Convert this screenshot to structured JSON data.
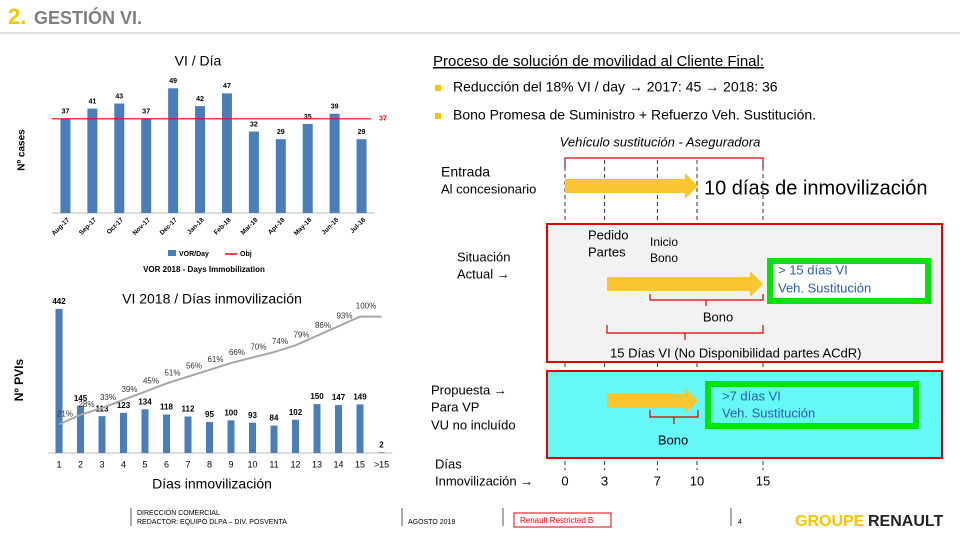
{
  "header": {
    "number": "2.",
    "title": "GESTIÓN VI."
  },
  "chart_data": [
    {
      "type": "bar",
      "title": "VI / Día",
      "y_label": "Nº cases",
      "categories": [
        "Aug-17",
        "Sep-17",
        "Oct-17",
        "Nov-17",
        "Dec-17",
        "Jan-18",
        "Feb-18",
        "Mar-18",
        "Apr-18",
        "May-18",
        "Jun-18",
        "Jul-18"
      ],
      "series": [
        {
          "name": "VOR/Day",
          "color": "#4a7ebb",
          "values": [
            37,
            41,
            43,
            37,
            49,
            42,
            47,
            32,
            29,
            35,
            39,
            29
          ]
        }
      ],
      "objective": {
        "name": "Obj",
        "value": 37,
        "color": "#ff0000"
      },
      "ylim": [
        0,
        55
      ],
      "caption": "VOR 2018 - Days Immobilization"
    },
    {
      "type": "bar-line",
      "title": "VI 2018 / Días inmovilización",
      "y_label": "Nº PVIs",
      "x_label": "Días inmovilización",
      "categories": [
        "1",
        "2",
        "3",
        "4",
        "5",
        "6",
        "7",
        "8",
        "9",
        "10",
        "11",
        "12",
        "13",
        "14",
        "15",
        ">15"
      ],
      "series": [
        {
          "color": "#4a7ebb",
          "values": [
            442,
            145,
            113,
            123,
            134,
            118,
            112,
            95,
            100,
            93,
            84,
            102,
            150,
            147,
            149,
            2
          ]
        },
        {
          "color": "#a6a6a6",
          "axis": "y2",
          "values": [
            21,
            28,
            33,
            39,
            45,
            51,
            56,
            61,
            66,
            70,
            74,
            79,
            86,
            93,
            100,
            100
          ],
          "value_labels": [
            "21%",
            "28%",
            "33%",
            "39%",
            "45%",
            "51%",
            "56%",
            "61%",
            "66%",
            "70%",
            "74%",
            "79%",
            "86%",
            "93%",
            "100%",
            null
          ]
        }
      ],
      "ylim": [
        0,
        460
      ],
      "y2lim": [
        0,
        110
      ]
    }
  ],
  "process": {
    "title": "Proceso de solución de movilidad al Cliente Final:",
    "bullets": [
      "Reducción del 18% VI / day  →    2017: 45 → 2018: 36",
      "Bono Promesa de Suministro + Refuerzo Veh. Sustitución."
    ]
  },
  "diagram": {
    "bracket_label": "Vehículo sustitución - Aseguradora",
    "entry": {
      "label": [
        "Entrada",
        "Al concesionario"
      ],
      "result": "10 días de inmovilización"
    },
    "current": {
      "label": [
        "Situación",
        "Actual →"
      ],
      "order": [
        "Pedido",
        "Partes"
      ],
      "start": [
        "Inicio",
        "Bono"
      ],
      "box": [
        "> 15 días VI",
        "Veh. Sustitución"
      ],
      "brace_label": "Bono",
      "span_label": "15 Días VI (No Disponibilidad partes ACdR)"
    },
    "proposal": {
      "label": [
        "Propuesta →",
        "Para VP",
        "VU no incluído"
      ],
      "box": [
        ">7 días VI",
        "Veh. Sustitución"
      ],
      "brace_label": "Bono"
    },
    "timeline": {
      "label": [
        "Días",
        "Inmovilización →"
      ],
      "ticks": [
        0,
        3,
        7,
        10,
        15
      ]
    }
  },
  "footer": {
    "department": "DIRECCIÓN COMERCIAL",
    "author": "REDACTOR: EQUIPO DLPA – DIV. POSVENTA",
    "date": "AGOSTO 2018",
    "classification": "Renault Restricted B",
    "page": 4,
    "brand": [
      "GROUPE",
      "RENAULT"
    ]
  }
}
